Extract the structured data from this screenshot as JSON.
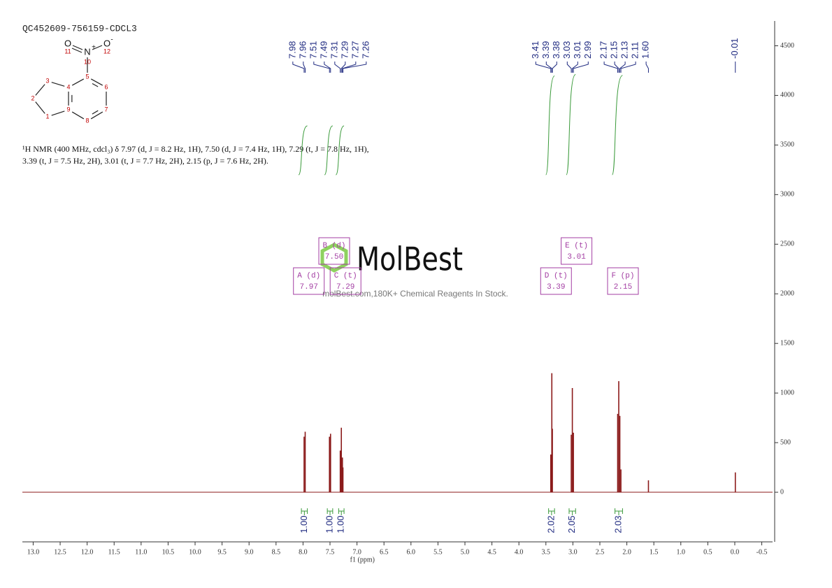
{
  "header": {
    "title": "QC452609-756159-CDCL3"
  },
  "structure": {
    "atoms": [
      "O",
      "N",
      "O"
    ],
    "charges": [
      "+",
      "-"
    ],
    "numbers": [
      1,
      2,
      3,
      4,
      5,
      6,
      7,
      8,
      9,
      10,
      11,
      12
    ]
  },
  "description": [
    "¹H NMR (400 MHz, cdcl₃) δ 7.97 (d, J = 8.2 Hz, 1H), 7.50 (d, J = 7.4 Hz, 1H), 7.29 (t, J = 7.8 Hz, 1H),",
    "3.39 (t, J = 7.5 Hz, 2H), 3.01 (t, J = 7.7 Hz, 2H), 2.15 (p, J = 7.6 Hz, 2H)."
  ],
  "watermark": {
    "logo": "MolBest",
    "text": "molBest.com,180K+ Chemical Reagents In Stock."
  },
  "chart_data": {
    "type": "nmr",
    "x_label": "f1 (ppm)",
    "xlim": [
      13.2,
      -0.7
    ],
    "ylim": [
      -500,
      4750
    ],
    "xticks": [
      {
        "value": 13,
        "label": "13.0"
      },
      {
        "value": 12.5,
        "label": "12.5"
      },
      {
        "value": 12,
        "label": "12.0"
      },
      {
        "value": 11.5,
        "label": "11.5"
      },
      {
        "value": 11,
        "label": "11.0"
      },
      {
        "value": 10.5,
        "label": "10.5"
      },
      {
        "value": 10,
        "label": "10.0"
      },
      {
        "value": 9.5,
        "label": "9.5"
      },
      {
        "value": 9,
        "label": "9.0"
      },
      {
        "value": 8.5,
        "label": "8.5"
      },
      {
        "value": 8,
        "label": "8.0"
      },
      {
        "value": 7.5,
        "label": "7.5"
      },
      {
        "value": 7,
        "label": "7.0"
      },
      {
        "value": 6.5,
        "label": "6.5"
      },
      {
        "value": 6,
        "label": "6.0"
      },
      {
        "value": 5.5,
        "label": "5.5"
      },
      {
        "value": 5,
        "label": "5.0"
      },
      {
        "value": 4.5,
        "label": "4.5"
      },
      {
        "value": 4,
        "label": "4.0"
      },
      {
        "value": 3.5,
        "label": "3.5"
      },
      {
        "value": 3,
        "label": "3.0"
      },
      {
        "value": 2.5,
        "label": "2.5"
      },
      {
        "value": 2,
        "label": "2.0"
      },
      {
        "value": 1.5,
        "label": "1.5"
      },
      {
        "value": 1,
        "label": "1.0"
      },
      {
        "value": 0.5,
        "label": "0.5"
      },
      {
        "value": 0,
        "label": "0.0"
      },
      {
        "value": -0.5,
        "label": "-0.5"
      }
    ],
    "yticks": [
      0,
      500,
      1000,
      1500,
      2000,
      2500,
      3000,
      3500,
      4000,
      4500
    ],
    "color": "#8b1a1a",
    "peak_label_color": "#1f2a80",
    "integral_color": "#3a9a3a",
    "multiplet_color": "#a33ea3",
    "peaks": {
      "x": [
        7.98,
        7.96,
        7.51,
        7.49,
        7.31,
        7.29,
        7.27,
        7.26,
        3.41,
        3.39,
        3.38,
        3.03,
        3.01,
        2.99,
        2.17,
        2.15,
        2.13,
        2.11,
        {
          "value": 1.6,
          "label": "1.60"
        },
        -0.01
      ],
      "values": [
        560,
        610,
        560,
        590,
        420,
        650,
        350,
        250,
        380,
        1200,
        640,
        580,
        1050,
        600,
        790,
        1120,
        770,
        230,
        120,
        200
      ]
    },
    "integrals": {
      "ranges": [
        [
          8.03,
          7.92
        ],
        [
          7.55,
          7.45
        ],
        [
          7.34,
          7.24
        ],
        [
          3.45,
          3.34
        ],
        [
          3.07,
          2.95
        ],
        [
          2.22,
          2.08
        ]
      ],
      "values": [
        {
          "value": 1,
          "label": "1.00"
        },
        {
          "value": 1,
          "label": "1.00"
        },
        {
          "value": 1,
          "label": "1.00"
        },
        2.02,
        2.05,
        2.03
      ]
    },
    "multiplets": [
      {
        "label": "A (d)",
        "shift": 7.97
      },
      {
        "label": "B (d)",
        "shift": {
          "value": 7.5,
          "label": "7.50"
        }
      },
      {
        "label": "C (t)",
        "shift": 7.29
      },
      {
        "label": "D (t)",
        "shift": 3.39
      },
      {
        "label": "E (t)",
        "shift": 3.01
      },
      {
        "label": "F (p)",
        "shift": 2.15
      }
    ]
  }
}
